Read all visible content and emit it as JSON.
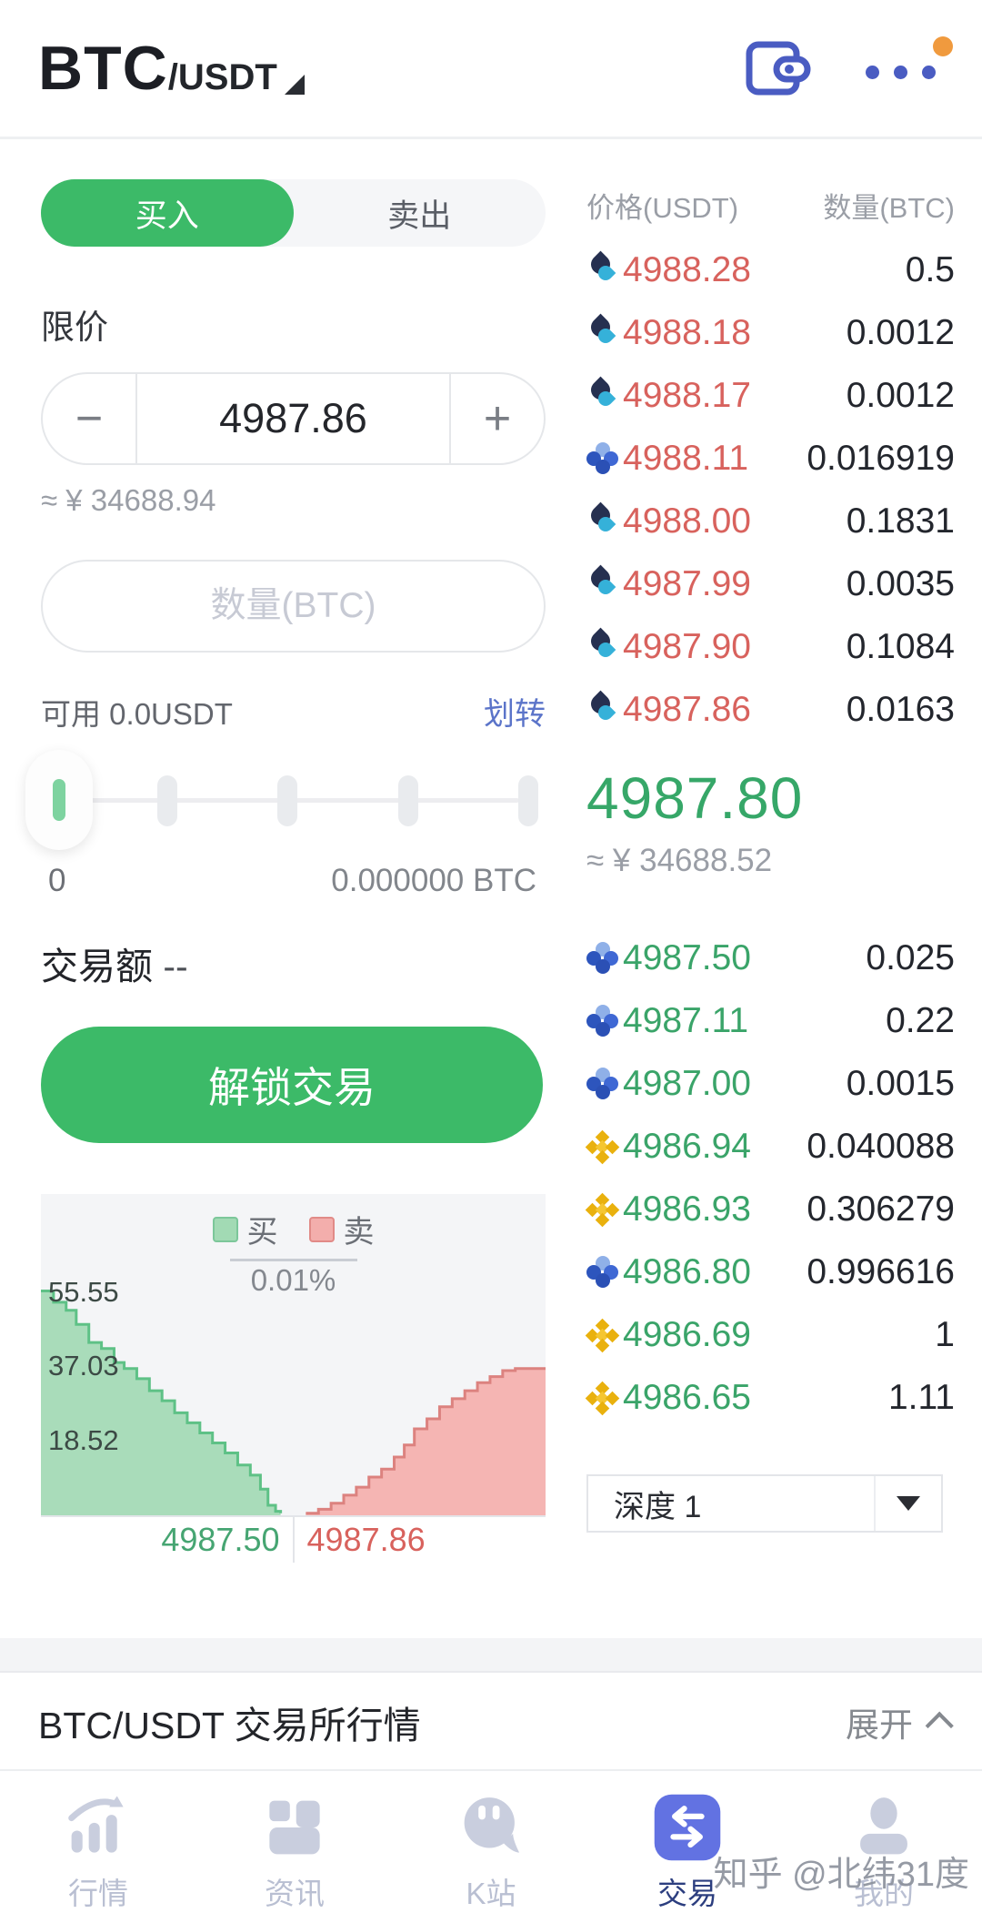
{
  "header": {
    "base": "BTC",
    "pair_suffix": "/USDT"
  },
  "side_tabs": {
    "buy": "买入",
    "sell": "卖出"
  },
  "form": {
    "type_label": "限价",
    "price": "4987.86",
    "minus": "−",
    "plus": "+",
    "cny_estimate": "≈ ¥ 34688.94",
    "amount_placeholder": "数量(BTC)",
    "available": "可用 0.0USDT",
    "transfer": "划转",
    "slider_left_label": "0",
    "slider_right_label": "0.000000 BTC",
    "total_label": "交易额",
    "total_value": "--",
    "submit": "解锁交易"
  },
  "order_book": {
    "col_price": "价格(USDT)",
    "col_amount": "数量(BTC)",
    "asks": [
      {
        "exchange": "huobi",
        "price": "4988.28",
        "amount": "0.5"
      },
      {
        "exchange": "huobi",
        "price": "4988.18",
        "amount": "0.0012"
      },
      {
        "exchange": "huobi",
        "price": "4988.17",
        "amount": "0.0012"
      },
      {
        "exchange": "okex",
        "price": "4988.11",
        "amount": "0.016919"
      },
      {
        "exchange": "huobi",
        "price": "4988.00",
        "amount": "0.1831"
      },
      {
        "exchange": "huobi",
        "price": "4987.99",
        "amount": "0.0035"
      },
      {
        "exchange": "huobi",
        "price": "4987.90",
        "amount": "0.1084"
      },
      {
        "exchange": "huobi",
        "price": "4987.86",
        "amount": "0.0163"
      }
    ],
    "last_price": "4987.80",
    "last_cny": "≈ ¥ 34688.52",
    "bids": [
      {
        "exchange": "okex",
        "price": "4987.50",
        "amount": "0.025"
      },
      {
        "exchange": "okex",
        "price": "4987.11",
        "amount": "0.22"
      },
      {
        "exchange": "okex",
        "price": "4987.00",
        "amount": "0.0015"
      },
      {
        "exchange": "binance",
        "price": "4986.94",
        "amount": "0.040088"
      },
      {
        "exchange": "binance",
        "price": "4986.93",
        "amount": "0.306279"
      },
      {
        "exchange": "okex",
        "price": "4986.80",
        "amount": "0.996616"
      },
      {
        "exchange": "binance",
        "price": "4986.69",
        "amount": "1"
      },
      {
        "exchange": "binance",
        "price": "4986.65",
        "amount": "1.11"
      }
    ],
    "depth_label": "深度 1"
  },
  "chart_data": {
    "type": "area",
    "legend": [
      "买",
      "卖"
    ],
    "legend_position": "top-center",
    "spread_label": "0.01%",
    "y_ticks": [
      55.55,
      37.03,
      18.52
    ],
    "y_tick_labels": [
      "55.55",
      "37.03",
      "18.52"
    ],
    "x_labels": [
      "4987.50",
      "4987.86"
    ],
    "ylim": [
      0,
      60
    ],
    "grid": false,
    "series": [
      {
        "name": "买",
        "fill": "#a9dcba",
        "line": "#5ec186",
        "points": [
          [
            0,
            55.8
          ],
          [
            0.025,
            53
          ],
          [
            0.05,
            51
          ],
          [
            0.07,
            47.5
          ],
          [
            0.095,
            43
          ],
          [
            0.12,
            41.5
          ],
          [
            0.145,
            38
          ],
          [
            0.165,
            36.5
          ],
          [
            0.19,
            34
          ],
          [
            0.215,
            31
          ],
          [
            0.24,
            28.5
          ],
          [
            0.265,
            25.5
          ],
          [
            0.29,
            23
          ],
          [
            0.315,
            20.5
          ],
          [
            0.34,
            18
          ],
          [
            0.365,
            15.5
          ],
          [
            0.39,
            12.5
          ],
          [
            0.415,
            10
          ],
          [
            0.435,
            6.5
          ],
          [
            0.45,
            2.5
          ],
          [
            0.465,
            1
          ],
          [
            0.475,
            0.5
          ]
        ]
      },
      {
        "name": "卖",
        "fill": "#f5b5b3",
        "line": "#dc827f",
        "points": [
          [
            0.525,
            0.5
          ],
          [
            0.55,
            1.5
          ],
          [
            0.575,
            3
          ],
          [
            0.6,
            5
          ],
          [
            0.625,
            7
          ],
          [
            0.65,
            9.5
          ],
          [
            0.675,
            11.5
          ],
          [
            0.7,
            14.5
          ],
          [
            0.72,
            17.5
          ],
          [
            0.74,
            21.5
          ],
          [
            0.765,
            24
          ],
          [
            0.79,
            27
          ],
          [
            0.815,
            29
          ],
          [
            0.84,
            31
          ],
          [
            0.865,
            33
          ],
          [
            0.89,
            34.5
          ],
          [
            0.915,
            36
          ],
          [
            0.94,
            36.5
          ],
          [
            1,
            36.5
          ]
        ]
      }
    ]
  },
  "market_bar": {
    "title": "BTC/USDT 交易所行情",
    "expand": "展开"
  },
  "bottom_nav": [
    {
      "label": "行情",
      "icon": "markets",
      "active": false
    },
    {
      "label": "资讯",
      "icon": "news",
      "active": false
    },
    {
      "label": "K站",
      "icon": "kstation",
      "active": false
    },
    {
      "label": "交易",
      "icon": "trade",
      "active": true
    },
    {
      "label": "我的",
      "icon": "profile",
      "active": false
    }
  ],
  "watermark": "知乎 @北纬31度",
  "colors": {
    "buy_green": "#3cba68",
    "ask_red": "#d8625d",
    "bid_green": "#3aa469",
    "accent_blue": "#4a5cc2",
    "nav_active_blue": "#6272e2",
    "orange_badge": "#f09a3e",
    "huobi_dark": "#263050",
    "huobi_cyan": "#35b1d9",
    "okex_blue": "#3a62c9",
    "binance_gold": "#e9b10e"
  }
}
